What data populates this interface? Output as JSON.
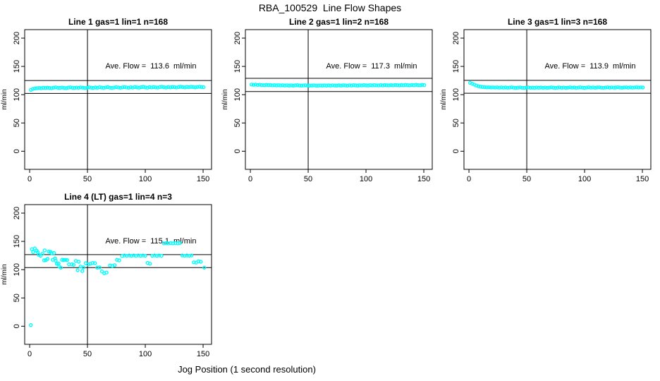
{
  "page_title": "RBA_100529  Line Flow Shapes",
  "chart_data": {
    "type": "scatter",
    "title": "RBA_100529  Line Flow Shapes",
    "xlabel": "Jog Position (1 second resolution)",
    "ylabel": "ml/min",
    "x_ticks": [
      0,
      50,
      100,
      150
    ],
    "y_ticks": [
      0,
      50,
      100,
      150,
      200
    ],
    "xlim": [
      -4.3,
      157.3
    ],
    "ylim": [
      -32,
      215
    ],
    "legend": "none",
    "grid": false,
    "point_color": "#00ffff",
    "line_color": "#000000",
    "subplots": [
      {
        "title": "Line 1 gas=1 lin=1 n=168",
        "n": 168,
        "ave_flow_ml_min": 113.6,
        "annotation": "Ave. Flow =  113.6  ml/min",
        "vline_x": 50,
        "ref_upper": 125.0,
        "ref_lower": 102.2,
        "band": {
          "x_start": 1,
          "x_step": 1.8,
          "y": [
            108.5,
            110.2,
            111.0,
            111.6,
            112.0,
            111.5,
            112.3,
            111.8,
            112.5,
            112.0,
            111.6,
            112.4,
            112.8,
            112.2,
            111.9,
            112.6,
            112.1,
            111.7,
            112.5,
            113.0,
            112.3,
            111.9,
            112.6,
            112.2,
            112.8,
            112.4,
            111.8,
            112.3,
            112.9,
            112.5,
            112.0,
            112.7,
            112.3,
            113.1,
            112.6,
            112.1,
            112.8,
            113.3,
            112.5,
            112.0,
            112.6,
            113.2,
            112.7,
            112.2,
            113.0,
            113.5,
            112.8,
            112.3,
            113.1,
            112.6,
            113.4,
            112.9,
            112.4,
            113.2,
            113.7,
            113.0,
            112.5,
            113.3,
            112.8,
            113.5,
            113.0,
            112.6,
            113.4,
            113.8,
            113.1,
            112.7,
            113.5,
            113.0,
            113.6,
            113.2,
            112.8,
            113.6,
            114.0,
            113.3,
            112.9,
            113.7,
            113.2,
            113.8,
            113.4,
            113.0,
            113.6,
            114.1,
            113.5,
            113.2
          ]
        }
      },
      {
        "title": "Line 2 gas=1 lin=2 n=168",
        "n": 168,
        "ave_flow_ml_min": 117.3,
        "annotation": "Ave. Flow =  117.3  ml/min",
        "vline_x": 50,
        "ref_upper": 129.0,
        "ref_lower": 105.6,
        "band": {
          "x_start": 1,
          "x_step": 1.8,
          "y": [
            118.0,
            117.5,
            117.8,
            117.2,
            117.6,
            117.0,
            116.8,
            117.3,
            116.9,
            117.1,
            116.6,
            117.0,
            116.4,
            116.8,
            116.3,
            116.7,
            116.2,
            116.6,
            116.1,
            116.5,
            116.0,
            116.4,
            116.8,
            116.2,
            115.9,
            116.3,
            116.7,
            116.1,
            115.8,
            116.2,
            116.6,
            116.0,
            115.8,
            116.3,
            116.1,
            116.5,
            115.9,
            116.4,
            116.0,
            116.6,
            116.2,
            115.9,
            116.5,
            116.1,
            116.7,
            116.3,
            116.0,
            116.6,
            116.2,
            116.8,
            116.4,
            116.1,
            116.7,
            116.3,
            116.9,
            116.5,
            116.2,
            116.8,
            116.4,
            117.0,
            116.6,
            116.3,
            116.9,
            116.5,
            117.1,
            116.7,
            116.4,
            117.0,
            116.6,
            117.2,
            116.8,
            116.5,
            117.1,
            116.7,
            117.3,
            116.9,
            116.6,
            117.2,
            116.8,
            117.4,
            117.0,
            116.7,
            117.3,
            117.0
          ]
        }
      },
      {
        "title": "Line 3 gas=1 lin=3 n=168",
        "n": 168,
        "ave_flow_ml_min": 113.9,
        "annotation": "Ave. Flow =  113.9  ml/min",
        "vline_x": 50,
        "ref_upper": 125.3,
        "ref_lower": 102.5,
        "band": {
          "x_start": 1,
          "x_step": 1.8,
          "y": [
            121.0,
            119.5,
            117.8,
            116.2,
            115.0,
            114.2,
            113.6,
            113.2,
            112.9,
            113.1,
            112.7,
            113.0,
            112.6,
            112.9,
            112.5,
            112.8,
            112.4,
            112.7,
            112.3,
            112.6,
            112.9,
            112.4,
            112.1,
            112.5,
            112.8,
            112.3,
            112.0,
            112.4,
            112.7,
            112.2,
            112.5,
            112.1,
            112.6,
            112.3,
            112.7,
            112.2,
            112.6,
            112.1,
            112.5,
            112.9,
            112.4,
            112.0,
            112.5,
            112.8,
            112.3,
            112.6,
            112.1,
            112.5,
            112.9,
            112.4,
            112.7,
            112.2,
            112.6,
            113.0,
            112.5,
            112.1,
            112.6,
            112.9,
            112.4,
            112.8,
            112.3,
            112.7,
            113.0,
            112.5,
            112.2,
            112.6,
            113.0,
            112.5,
            112.8,
            112.4,
            112.7,
            113.1,
            112.6,
            112.3,
            112.7,
            113.0,
            112.5,
            112.9,
            112.4,
            112.8,
            113.1,
            112.6,
            113.0,
            112.7
          ]
        }
      },
      {
        "title": "Line 4 (LT) gas=1 lin=4 n=3",
        "n": 3,
        "ave_flow_ml_min": 115.1,
        "annotation": "Ave. Flow =  115.1  ml/min",
        "vline_x": 50,
        "ref_upper": 126.6,
        "ref_lower": 103.6,
        "points": [
          [
            1,
            2
          ],
          [
            2,
            136
          ],
          [
            3,
            131
          ],
          [
            4.5,
            137.5
          ],
          [
            6,
            133.5
          ],
          [
            7,
            131
          ],
          [
            8,
            126
          ],
          [
            9.5,
            124.5
          ],
          [
            11,
            128
          ],
          [
            12.5,
            116.5
          ],
          [
            13,
            134
          ],
          [
            14,
            117
          ],
          [
            15.5,
            119
          ],
          [
            16.5,
            132
          ],
          [
            18,
            131.5
          ],
          [
            19,
            129
          ],
          [
            20,
            117.5
          ],
          [
            21,
            129.5
          ],
          [
            22,
            120
          ],
          [
            22.5,
            116
          ],
          [
            23.5,
            110.5
          ],
          [
            25,
            111
          ],
          [
            25.5,
            105.5
          ],
          [
            27,
            103.5
          ],
          [
            28,
            117.5
          ],
          [
            29.5,
            117
          ],
          [
            31,
            117.5
          ],
          [
            32.5,
            117
          ],
          [
            34,
            109.5
          ],
          [
            36.5,
            109.5
          ],
          [
            38,
            108.5
          ],
          [
            40,
            115.5
          ],
          [
            41.5,
            99
          ],
          [
            42.5,
            114
          ],
          [
            44,
            105.5
          ],
          [
            45.5,
            97.5
          ],
          [
            46.5,
            104
          ],
          [
            48.5,
            111.5
          ],
          [
            50.5,
            109.5
          ],
          [
            52.5,
            110.5
          ],
          [
            54.5,
            112
          ],
          [
            56.5,
            111.5
          ],
          [
            58.5,
            103.5
          ],
          [
            60.5,
            104
          ],
          [
            62.5,
            97
          ],
          [
            64.5,
            93.5
          ],
          [
            66.5,
            95
          ],
          [
            69.5,
            107.5
          ],
          [
            71.5,
            106.5
          ],
          [
            73.5,
            108
          ],
          [
            75.5,
            117.5
          ],
          [
            77.5,
            116.5
          ],
          [
            80,
            124
          ],
          [
            82,
            125
          ],
          [
            84,
            124.5
          ],
          [
            86,
            125
          ],
          [
            88,
            124.5
          ],
          [
            90,
            125
          ],
          [
            92,
            124.5
          ],
          [
            94,
            125
          ],
          [
            96,
            124.5
          ],
          [
            98,
            125
          ],
          [
            100,
            124.5
          ],
          [
            102,
            112
          ],
          [
            104,
            110.5
          ],
          [
            106,
            124.5
          ],
          [
            108,
            125
          ],
          [
            110,
            124.5
          ],
          [
            112,
            125
          ],
          [
            114,
            124.5
          ],
          [
            116,
            146.5
          ],
          [
            118,
            147
          ],
          [
            120,
            146.5
          ],
          [
            122,
            147
          ],
          [
            124,
            146.5
          ],
          [
            126,
            147
          ],
          [
            128,
            146.5
          ],
          [
            130,
            147
          ],
          [
            132,
            125
          ],
          [
            134,
            124.5
          ],
          [
            136,
            125
          ],
          [
            138,
            124.5
          ],
          [
            140,
            125
          ],
          [
            142,
            113
          ],
          [
            144,
            112.5
          ],
          [
            146,
            115
          ],
          [
            148,
            114
          ],
          [
            151,
            103.5
          ]
        ]
      }
    ]
  }
}
